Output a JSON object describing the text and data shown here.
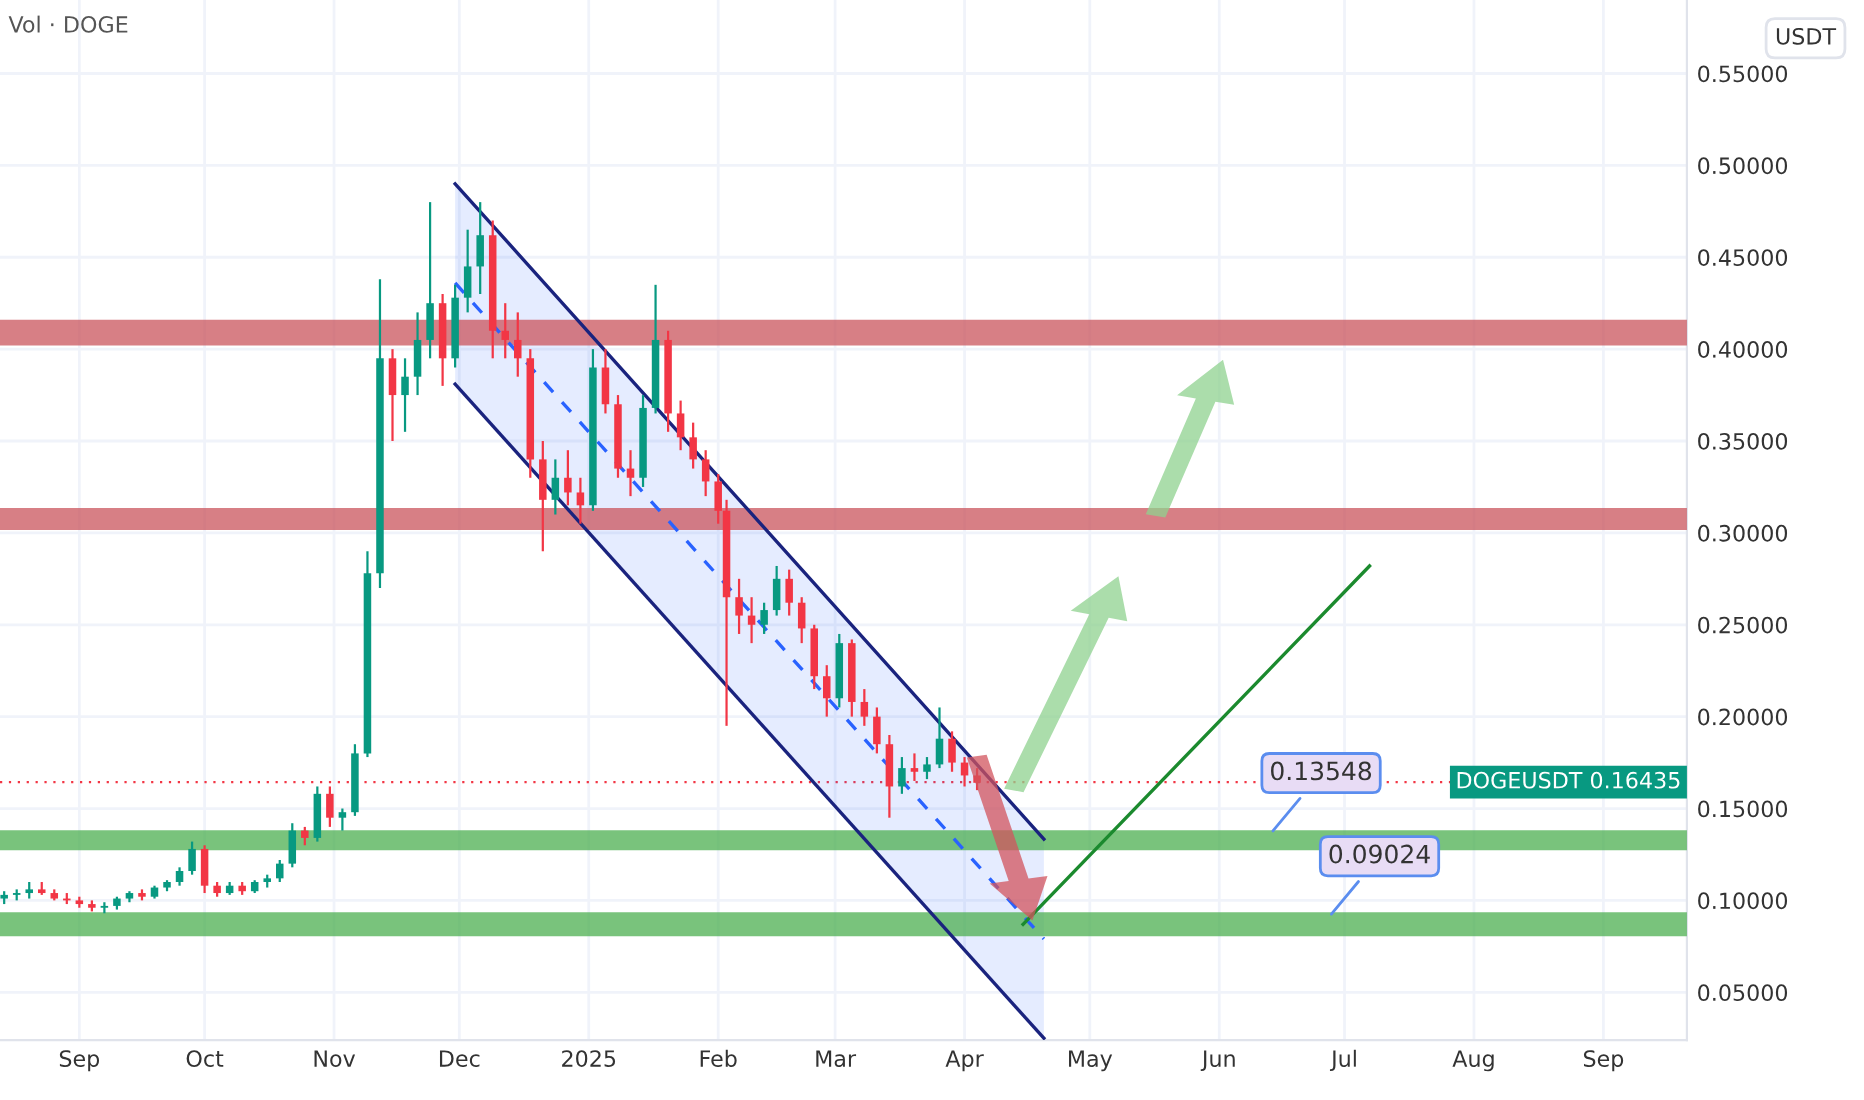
{
  "chart_data": {
    "type": "candlestick",
    "ylabel": "USDT",
    "annotations": [
      "Vol · DOGE",
      {
        "text": "0.13548",
        "x": "2025-06-13",
        "y": 0.13548
      },
      {
        "text": "0.09024",
        "x": "2025-06-27",
        "y": 0.09024
      }
    ],
    "x": [
      "2024-08-14",
      "2024-08-17",
      "2024-08-20",
      "2024-08-23",
      "2024-08-26",
      "2024-08-29",
      "2024-09-01",
      "2024-09-04",
      "2024-09-07",
      "2024-09-10",
      "2024-09-13",
      "2024-09-16",
      "2024-09-19",
      "2024-09-22",
      "2024-09-25",
      "2024-09-28",
      "2024-10-01",
      "2024-10-04",
      "2024-10-07",
      "2024-10-10",
      "2024-10-13",
      "2024-10-16",
      "2024-10-19",
      "2024-10-22",
      "2024-10-25",
      "2024-10-28",
      "2024-10-31",
      "2024-11-03",
      "2024-11-06",
      "2024-11-09",
      "2024-11-12",
      "2024-11-15",
      "2024-11-18",
      "2024-11-21",
      "2024-11-24",
      "2024-11-27",
      "2024-11-30",
      "2024-12-03",
      "2024-12-06",
      "2024-12-09",
      "2024-12-12",
      "2024-12-15",
      "2024-12-18",
      "2024-12-21",
      "2024-12-24",
      "2024-12-27",
      "2024-12-30",
      "2025-01-02",
      "2025-01-05",
      "2025-01-08",
      "2025-01-11",
      "2025-01-14",
      "2025-01-17",
      "2025-01-20",
      "2025-01-23",
      "2025-01-26",
      "2025-01-29",
      "2025-02-01",
      "2025-02-03",
      "2025-02-06",
      "2025-02-09",
      "2025-02-12",
      "2025-02-15",
      "2025-02-18",
      "2025-02-21",
      "2025-02-24",
      "2025-02-27",
      "2025-03-02",
      "2025-03-05",
      "2025-03-08",
      "2025-03-11",
      "2025-03-14",
      "2025-03-17",
      "2025-03-20",
      "2025-03-23",
      "2025-03-26",
      "2025-03-29",
      "2025-04-01",
      "2025-04-04"
    ],
    "ohlc": [
      [
        0.101,
        0.105,
        0.098,
        0.103
      ],
      [
        0.103,
        0.106,
        0.1,
        0.104
      ],
      [
        0.104,
        0.11,
        0.101,
        0.106
      ],
      [
        0.106,
        0.11,
        0.103,
        0.104
      ],
      [
        0.104,
        0.106,
        0.1,
        0.101
      ],
      [
        0.101,
        0.104,
        0.098,
        0.1
      ],
      [
        0.1,
        0.102,
        0.096,
        0.098
      ],
      [
        0.098,
        0.1,
        0.094,
        0.096
      ],
      [
        0.096,
        0.099,
        0.093,
        0.097
      ],
      [
        0.097,
        0.102,
        0.095,
        0.101
      ],
      [
        0.101,
        0.105,
        0.099,
        0.104
      ],
      [
        0.104,
        0.106,
        0.1,
        0.102
      ],
      [
        0.102,
        0.108,
        0.101,
        0.107
      ],
      [
        0.107,
        0.111,
        0.105,
        0.11
      ],
      [
        0.11,
        0.118,
        0.108,
        0.116
      ],
      [
        0.116,
        0.132,
        0.114,
        0.128
      ],
      [
        0.128,
        0.13,
        0.104,
        0.108
      ],
      [
        0.108,
        0.11,
        0.102,
        0.104
      ],
      [
        0.104,
        0.11,
        0.103,
        0.108
      ],
      [
        0.108,
        0.11,
        0.103,
        0.105
      ],
      [
        0.105,
        0.111,
        0.104,
        0.11
      ],
      [
        0.11,
        0.114,
        0.107,
        0.112
      ],
      [
        0.112,
        0.122,
        0.11,
        0.12
      ],
      [
        0.12,
        0.142,
        0.118,
        0.138
      ],
      [
        0.138,
        0.14,
        0.13,
        0.134
      ],
      [
        0.134,
        0.162,
        0.132,
        0.158
      ],
      [
        0.158,
        0.162,
        0.14,
        0.145
      ],
      [
        0.145,
        0.15,
        0.138,
        0.148
      ],
      [
        0.148,
        0.185,
        0.146,
        0.18
      ],
      [
        0.18,
        0.29,
        0.178,
        0.278
      ],
      [
        0.278,
        0.438,
        0.27,
        0.395
      ],
      [
        0.395,
        0.4,
        0.35,
        0.375
      ],
      [
        0.375,
        0.395,
        0.355,
        0.385
      ],
      [
        0.385,
        0.42,
        0.375,
        0.405
      ],
      [
        0.405,
        0.48,
        0.395,
        0.425
      ],
      [
        0.425,
        0.43,
        0.38,
        0.395
      ],
      [
        0.395,
        0.435,
        0.39,
        0.428
      ],
      [
        0.428,
        0.465,
        0.42,
        0.445
      ],
      [
        0.445,
        0.48,
        0.43,
        0.462
      ],
      [
        0.462,
        0.47,
        0.395,
        0.41
      ],
      [
        0.41,
        0.425,
        0.395,
        0.405
      ],
      [
        0.405,
        0.42,
        0.385,
        0.395
      ],
      [
        0.395,
        0.4,
        0.33,
        0.34
      ],
      [
        0.34,
        0.35,
        0.29,
        0.318
      ],
      [
        0.318,
        0.34,
        0.31,
        0.33
      ],
      [
        0.33,
        0.345,
        0.315,
        0.322
      ],
      [
        0.322,
        0.33,
        0.305,
        0.315
      ],
      [
        0.315,
        0.4,
        0.312,
        0.39
      ],
      [
        0.39,
        0.4,
        0.365,
        0.37
      ],
      [
        0.37,
        0.375,
        0.33,
        0.335
      ],
      [
        0.335,
        0.345,
        0.32,
        0.33
      ],
      [
        0.33,
        0.375,
        0.325,
        0.368
      ],
      [
        0.368,
        0.435,
        0.365,
        0.405
      ],
      [
        0.405,
        0.41,
        0.355,
        0.365
      ],
      [
        0.365,
        0.372,
        0.345,
        0.352
      ],
      [
        0.352,
        0.36,
        0.335,
        0.34
      ],
      [
        0.34,
        0.345,
        0.32,
        0.328
      ],
      [
        0.328,
        0.332,
        0.305,
        0.312
      ],
      [
        0.312,
        0.318,
        0.195,
        0.265
      ],
      [
        0.265,
        0.275,
        0.245,
        0.255
      ],
      [
        0.255,
        0.265,
        0.24,
        0.25
      ],
      [
        0.25,
        0.262,
        0.245,
        0.258
      ],
      [
        0.258,
        0.282,
        0.255,
        0.275
      ],
      [
        0.275,
        0.28,
        0.255,
        0.262
      ],
      [
        0.262,
        0.265,
        0.24,
        0.248
      ],
      [
        0.248,
        0.25,
        0.215,
        0.222
      ],
      [
        0.222,
        0.228,
        0.2,
        0.21
      ],
      [
        0.21,
        0.245,
        0.205,
        0.24
      ],
      [
        0.24,
        0.242,
        0.2,
        0.208
      ],
      [
        0.208,
        0.215,
        0.195,
        0.2
      ],
      [
        0.2,
        0.205,
        0.18,
        0.185
      ],
      [
        0.185,
        0.19,
        0.145,
        0.162
      ],
      [
        0.162,
        0.178,
        0.158,
        0.172
      ],
      [
        0.172,
        0.18,
        0.165,
        0.17
      ],
      [
        0.17,
        0.178,
        0.166,
        0.174
      ],
      [
        0.174,
        0.205,
        0.172,
        0.188
      ],
      [
        0.188,
        0.192,
        0.17,
        0.175
      ],
      [
        0.175,
        0.178,
        0.162,
        0.168
      ],
      [
        0.168,
        0.172,
        0.16,
        0.164
      ]
    ],
    "series": [
      {
        "type": "line",
        "x": [
          "2024-11-30",
          "2025-04-20"
        ],
        "values": [
          0.436,
          0.079
        ],
        "lower": [
          0.381,
          0.025
        ],
        "upper": [
          0.49,
          0.1334
        ],
        "color": "#2962ff",
        "line_style": "dashed"
      },
      {
        "type": "line",
        "x": [
          "2024-11-30",
          "2025-04-20"
        ],
        "values": [
          0.49,
          0.1334
        ],
        "color": "#1a237e",
        "line_style": "solid"
      },
      {
        "type": "line",
        "x": [
          "2024-11-30",
          "2025-04-20"
        ],
        "values": [
          0.381,
          0.025
        ],
        "color": "#1a237e",
        "line_style": "solid"
      },
      {
        "type": "line",
        "x": [
          "2025-04-15",
          "2025-07-07"
        ],
        "values": [
          0.087,
          0.282
        ],
        "color": "#1b8a2e",
        "line_style": "solid"
      }
    ],
    "bands": [
      {
        "axis": "y",
        "from": 0.402,
        "to": 0.416,
        "color": "#c9545c"
      },
      {
        "axis": "y",
        "from": 0.3016,
        "to": 0.3136,
        "color": "#c9545c"
      },
      {
        "axis": "y",
        "from": 0.1273,
        "to": 0.1382,
        "color": "#4caf50"
      },
      {
        "axis": "y",
        "from": 0.0805,
        "to": 0.0936,
        "color": "#4caf50"
      }
    ],
    "ref_lines": [
      {
        "axis": "y",
        "value": 0.16435,
        "label": "DOGEUSDT 0.16435",
        "color": "#f23645",
        "line_style": "dotted"
      }
    ],
    "xlim": [
      "2024-08-13",
      "2025-09-21"
    ],
    "xticks": [
      {
        "value": "2024-09-01",
        "label": "Sep"
      },
      {
        "value": "2024-10-01",
        "label": "Oct"
      },
      {
        "value": "2024-11-01",
        "label": "Nov"
      },
      {
        "value": "2024-12-01",
        "label": "Dec"
      },
      {
        "value": "2025-01-01",
        "label": "2025"
      },
      {
        "value": "2025-02-01",
        "label": "Feb"
      },
      {
        "value": "2025-03-01",
        "label": "Mar"
      },
      {
        "value": "2025-04-01",
        "label": "Apr"
      },
      {
        "value": "2025-05-01",
        "label": "May"
      },
      {
        "value": "2025-06-01",
        "label": "Jun"
      },
      {
        "value": "2025-07-01",
        "label": "Jul"
      },
      {
        "value": "2025-08-01",
        "label": "Aug"
      },
      {
        "value": "2025-09-01",
        "label": "Sep"
      }
    ],
    "ylim": [
      0.024,
      0.59
    ],
    "yticks": [
      {
        "value": 0.05,
        "label": "0.05000"
      },
      {
        "value": 0.1,
        "label": "0.10000"
      },
      {
        "value": 0.15,
        "label": "0.15000"
      },
      {
        "value": 0.2,
        "label": "0.20000"
      },
      {
        "value": 0.25,
        "label": "0.25000"
      },
      {
        "value": 0.3,
        "label": "0.30000"
      },
      {
        "value": 0.35,
        "label": "0.35000"
      },
      {
        "value": 0.4,
        "label": "0.40000"
      },
      {
        "value": 0.45,
        "label": "0.45000"
      },
      {
        "value": 0.5,
        "label": "0.50000"
      },
      {
        "value": 0.55,
        "label": "0.55000"
      }
    ],
    "grid": true,
    "marker": "none"
  }
}
